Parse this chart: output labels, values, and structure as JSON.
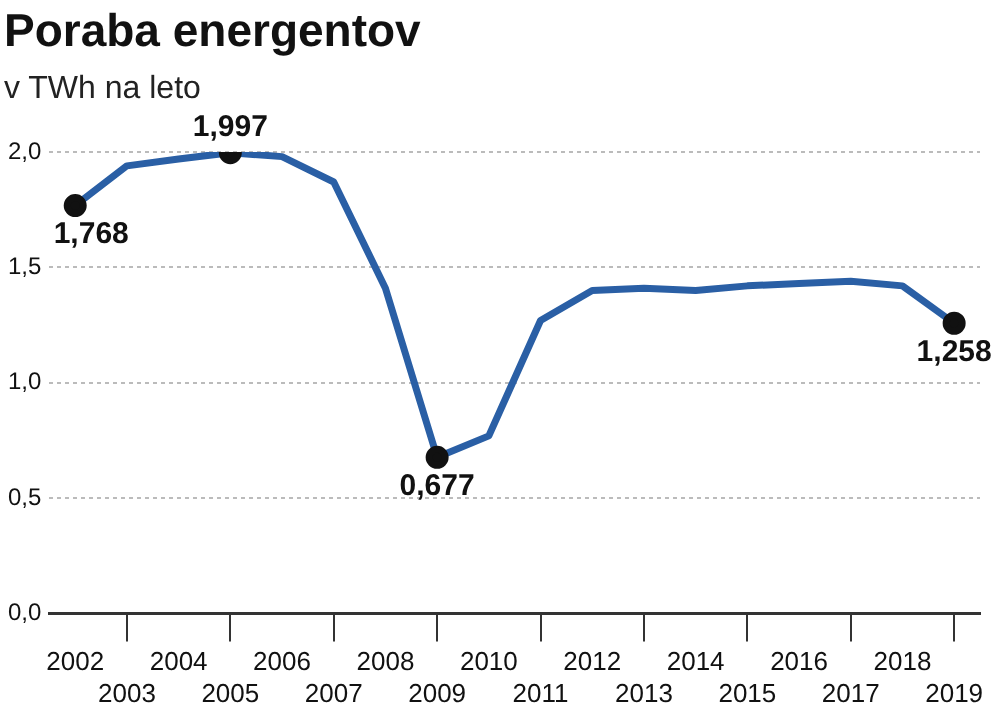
{
  "chart_data": {
    "type": "line",
    "title": "Poraba energentov",
    "subtitle": "v TWh na leto",
    "categories": [
      "2002",
      "2003",
      "2004",
      "2005",
      "2006",
      "2007",
      "2008",
      "2009",
      "2010",
      "2011",
      "2012",
      "2013",
      "2014",
      "2015",
      "2016",
      "2017",
      "2018",
      "2019"
    ],
    "series": [
      {
        "color": "#2a5fa5",
        "values": [
          1.768,
          1.94,
          1.97,
          1.997,
          1.98,
          1.87,
          1.41,
          0.677,
          0.77,
          1.27,
          1.4,
          1.41,
          1.4,
          1.42,
          1.43,
          1.44,
          1.42,
          1.258
        ],
        "value_labels": [
          "1,768",
          null,
          null,
          "1,997",
          null,
          null,
          null,
          "0,677",
          null,
          null,
          null,
          null,
          null,
          null,
          null,
          null,
          null,
          "1,258"
        ]
      }
    ],
    "ylim": [
      0,
      2
    ],
    "yticks": [
      {
        "value": 0,
        "label": "0,0"
      },
      {
        "value": 0.5,
        "label": "0,5"
      },
      {
        "value": 1,
        "label": "1,0"
      },
      {
        "value": 1.5,
        "label": "1,5"
      },
      {
        "value": 2,
        "label": "2,0"
      }
    ],
    "grid": "y",
    "line_style": "solid",
    "legend": false
  }
}
